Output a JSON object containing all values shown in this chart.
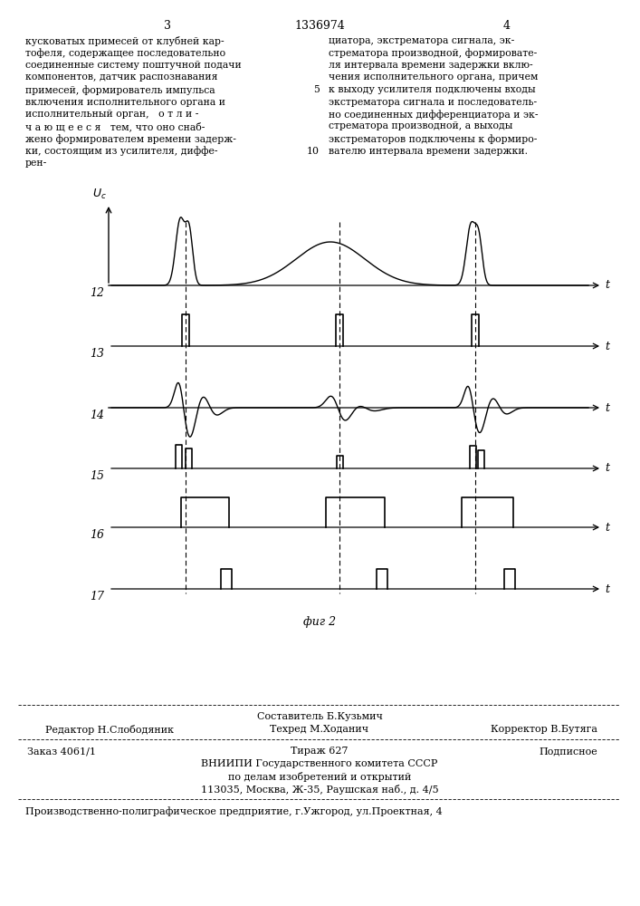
{
  "title_center": "1336974",
  "page_left": "3",
  "page_right": "4",
  "fig_label": "фиг 2",
  "background_color": "#ffffff",
  "footer_line1_left": "Редактор Н.Слободяник",
  "footer_line1_center_top": "Составитель Б.Кузьмич",
  "footer_line1_center_bot": "Техред М.Ходанич",
  "footer_line1_right": "Корректор В.Бутяга",
  "footer_order": "Заказ 4061/1",
  "footer_tirazh": "Тираж 627",
  "footer_podp": "Подписное",
  "footer_vniip1": "ВНИИПИ Государственного комитета СССР",
  "footer_vniip2": "по делам изобретений и открытий",
  "footer_vniip3": "113035, Москва, Ж-35, Раушская наб., д. 4/5",
  "footer_bottom": "Производственно-полиграфическое предприятие, г.Ужгород, ул.Проектная, 4"
}
